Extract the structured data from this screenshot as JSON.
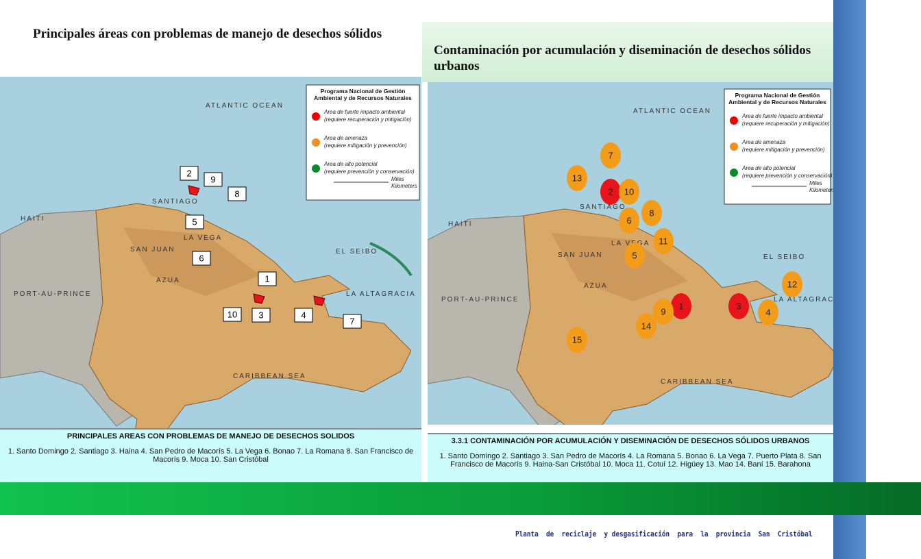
{
  "left": {
    "title": "Principales áreas con problemas de manejo de desechos sólidos",
    "legend": {
      "title": [
        "Programa Nacional de Gestión",
        "Ambiental  y de Recursos  Naturales"
      ],
      "items": [
        [
          "Area de fuerte impacto ambiental",
          "(requiere recuperación y mitigación)"
        ],
        [
          "Area de amenaza",
          "(requiere mitigación y prevención)"
        ],
        [
          "Area de alto potencial",
          "(requiere prevención y conservación)"
        ]
      ],
      "scale": [
        "Miles",
        "Kilometers"
      ]
    },
    "map_labels": [
      "ATLANTIC   OCEAN",
      "CARIBBEAN  SEA",
      "HAITI",
      "SANTIAGO",
      "LA VEGA",
      "SAN JUAN",
      "AZUA",
      "EL SEIBO",
      "LA ALTAGRACIA",
      "PORT-AU-PRINCE"
    ],
    "markers": [
      "1",
      "2",
      "3",
      "4",
      "5",
      "6",
      "7",
      "8",
      "9",
      "10"
    ],
    "caption": {
      "title": "PRINCIPALES AREAS CON PROBLEMAS DE MANEJO DE DESECHOS SOLIDOS",
      "text": "1. Santo Domingo  2. Santiago  3. Haina  4. San Pedro de Macorís  5. La Vega  6. Bonao  7. La Romana  8. San Francisco de Macorís  9. Moca  10. San Cristóbal"
    }
  },
  "right": {
    "title": "Contaminación por acumulación y diseminación de desechos sólidos urbanos",
    "legend": {
      "title": [
        "Programa Nacional de Gestión",
        "Ambiental  y de Recursos  Naturales"
      ],
      "items": [
        [
          "Area de fuerte impacto ambiental",
          "(requiere recuperación y mitigación)"
        ],
        [
          "Area de amenaza",
          "(requiere mitigación y prevención)"
        ],
        [
          "Area de alto potencial",
          "(requiere prevención y conservación)"
        ]
      ],
      "scale": [
        "Miles",
        "Kilometers"
      ]
    },
    "map_labels": [
      "ATLANTIC   OCEAN",
      "CARIBBEAN  SEA",
      "HAITI",
      "SANTIAGO",
      "LA VEGA",
      "SAN JUAN",
      "AZUA",
      "EL SEIBO",
      "LA ALTAGRACIA",
      "PORT-AU-PRINCE"
    ],
    "markers": [
      "1",
      "2",
      "3",
      "4",
      "5",
      "6",
      "7",
      "8",
      "9",
      "10",
      "11",
      "12",
      "13",
      "14",
      "15"
    ],
    "caption": {
      "title": "3.3.1 CONTAMINACIÓN POR ACUMULACIÓN Y DISEMINACIÓN DE DESECHOS SÓLIDOS URBANOS",
      "text": "1. Santo Domingo 2. Santiago 3. San Pedro de Macorís 4.  La Romana   5. Bonao  6. La Vega  7. Puerto Plata  8. San Francisco de Macorís 9. Haina-San  Cristóbal  10. Moca  11. Cotuí  12. Higüey  13. Mao   14.  Baní  15. Barahona"
    }
  },
  "footer": "Planta  de  reciclaje  y desgasificación  para  la  provincia  San  Cristóbal"
}
